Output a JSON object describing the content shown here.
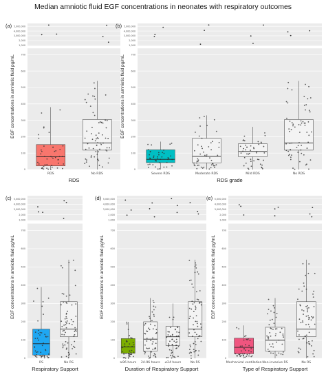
{
  "title": "Median amniotic fluid EGF concentrations in neonates with respiratory outcomes",
  "y_label": "EGF concentrations in amniotic fluid pg/mL",
  "y_ticks": [
    "0",
    "100",
    "200",
    "300",
    "400",
    "500",
    "600",
    "700",
    "1,000",
    "2,000",
    "3,000,000",
    "4,000,000",
    "5,000,000"
  ],
  "chart_data": [
    {
      "panel": "(a)",
      "type": "box",
      "xlabel": "RDS",
      "categories": [
        "RDS",
        "No RDS"
      ],
      "boxes": [
        {
          "q1": 22,
          "median": 78,
          "q3": 152,
          "whisker_high": 380,
          "color": "#f8766d"
        },
        {
          "q1": 118,
          "median": 162,
          "q3": 305,
          "whisker_high": 540,
          "color": "#f3f3f3"
        }
      ]
    },
    {
      "panel": "(b)",
      "type": "box",
      "xlabel": "RDS grade",
      "categories": [
        "Severe RDS",
        "Moderate RDS",
        "Mild RDS",
        "No RDS"
      ],
      "boxes": [
        {
          "q1": 42,
          "median": 62,
          "q3": 120,
          "whisker_high": 170,
          "color": "#00bfc4"
        },
        {
          "q1": 40,
          "median": 80,
          "q3": 190,
          "whisker_high": 330,
          "color": "#f3f3f3"
        },
        {
          "q1": 78,
          "median": 110,
          "q3": 158,
          "whisker_high": 260,
          "color": "#f3f3f3"
        },
        {
          "q1": 118,
          "median": 162,
          "q3": 305,
          "whisker_high": 540,
          "color": "#f3f3f3"
        }
      ]
    },
    {
      "panel": "(c)",
      "type": "box",
      "xlabel": "Respiratory Support",
      "categories": [
        "RS",
        "No RS"
      ],
      "boxes": [
        {
          "q1": 18,
          "median": 80,
          "q3": 160,
          "whisker_high": 390,
          "color": "#1fa7f2"
        },
        {
          "q1": 118,
          "median": 160,
          "q3": 310,
          "whisker_high": 540,
          "color": "#f3f3f3"
        }
      ]
    },
    {
      "panel": "(d)",
      "type": "box",
      "xlabel": "Duration of Respiratory Support",
      "categories": [
        "≥96 hours",
        "24-96 hours",
        "≤24 hours",
        "No RS"
      ],
      "boxes": [
        {
          "q1": 28,
          "median": 62,
          "q3": 108,
          "whisker_high": 200,
          "color": "#7cae00"
        },
        {
          "q1": 40,
          "median": 105,
          "q3": 200,
          "whisker_high": 330,
          "color": "#f3f3f3"
        },
        {
          "q1": 70,
          "median": 118,
          "q3": 175,
          "whisker_high": 300,
          "color": "#f3f3f3"
        },
        {
          "q1": 118,
          "median": 160,
          "q3": 310,
          "whisker_high": 540,
          "color": "#f3f3f3"
        }
      ]
    },
    {
      "panel": "(e)",
      "type": "box",
      "xlabel": "Type of Respiratory Support",
      "categories": [
        "Mechanical ventilation",
        "Non-invasive RS",
        "No RS"
      ],
      "boxes": [
        {
          "q1": 25,
          "median": 60,
          "q3": 110,
          "whisker_high": 180,
          "color": "#f0557f"
        },
        {
          "q1": 40,
          "median": 100,
          "q3": 170,
          "whisker_high": 330,
          "color": "#f3f3f3"
        },
        {
          "q1": 118,
          "median": 160,
          "q3": 310,
          "whisker_high": 540,
          "color": "#f3f3f3"
        }
      ]
    }
  ]
}
